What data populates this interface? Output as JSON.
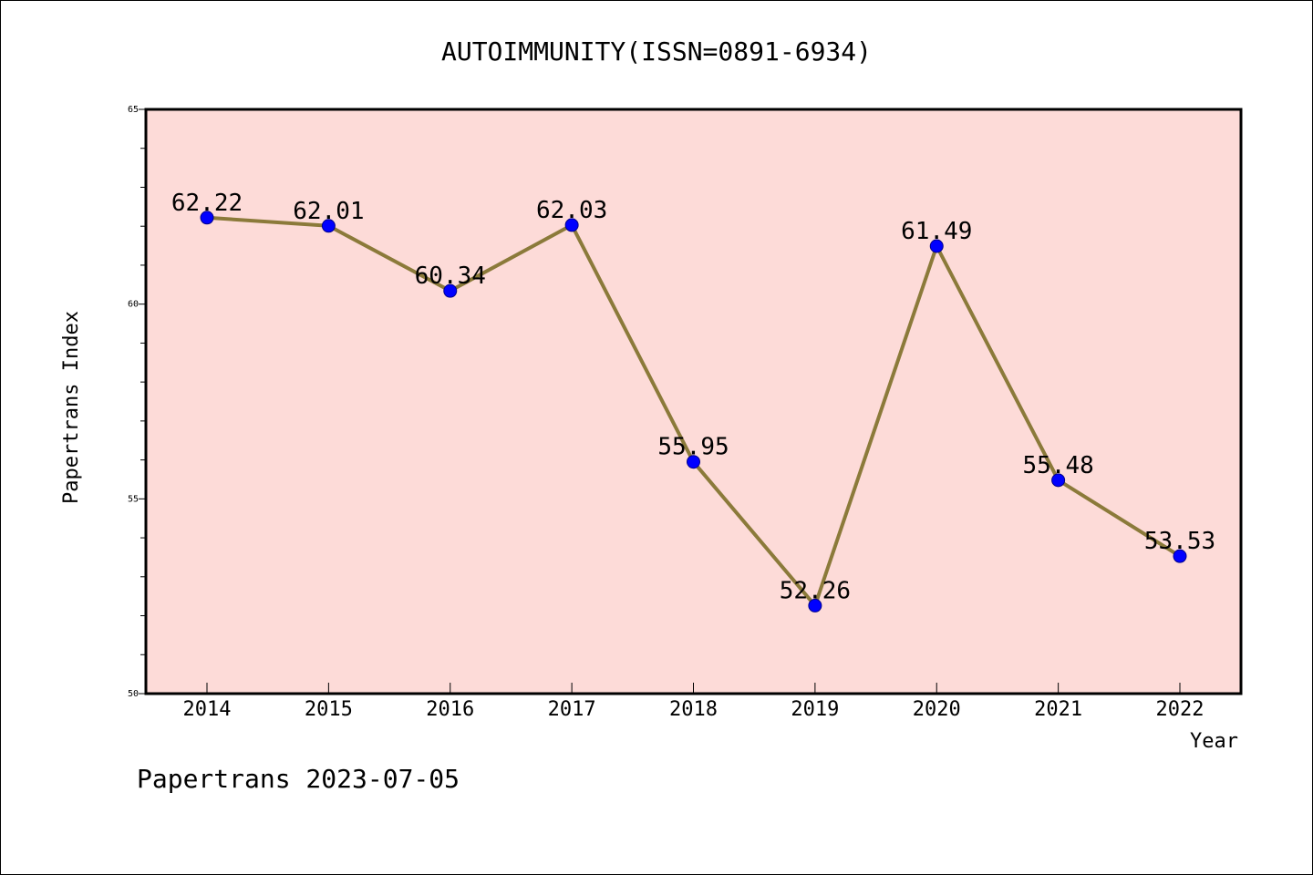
{
  "chart_data": {
    "type": "line",
    "title": "AUTOIMMUNITY(ISSN=0891-6934)",
    "xlabel": "Year",
    "ylabel": "Papertrans Index",
    "categories": [
      "2014",
      "2015",
      "2016",
      "2017",
      "2018",
      "2019",
      "2020",
      "2021",
      "2022"
    ],
    "series": [
      {
        "values": [
          62.22,
          62.01,
          60.34,
          62.03,
          55.95,
          52.26,
          61.49,
          55.48,
          53.53
        ]
      }
    ],
    "data_labels": [
      "62.22",
      "62.01",
      "60.34",
      "62.03",
      "55.95",
      "52.26",
      "61.49",
      "55.48",
      "53.53"
    ],
    "ylim": [
      50,
      65
    ],
    "yticks": [
      "50",
      "55",
      "60",
      "65"
    ],
    "grid": false,
    "colors": {
      "line": "#8B7A3A",
      "marker": "#0000FF",
      "plot_bg": "#FDDBD8"
    }
  },
  "footer": {
    "text": "Papertrans 2023-07-05"
  }
}
